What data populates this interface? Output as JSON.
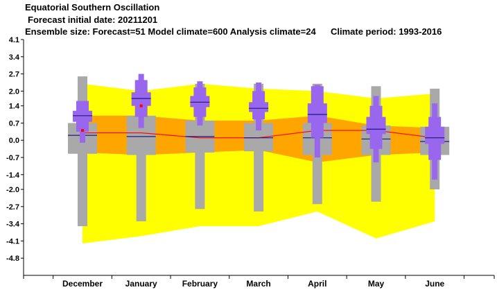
{
  "header": {
    "title": "Equatorial Southern Oscillation",
    "subtitle": "Forecast initial date: 20211201",
    "ensemble": "Ensemble size: Forecast=51 Model climate=600 Analysis climate=24",
    "climate_period": "Climate period: 1993-2016"
  },
  "colors": {
    "climate_outer": "#ffff00",
    "climate_inner": "#ffa500",
    "climate_box": "#a9a9a9",
    "forecast_box": "#9966ee",
    "median_line": "#1a1a80",
    "clim_median_line": "#ff0000",
    "analysis_marker": "#ff0000"
  },
  "chart_data": {
    "type": "box",
    "title": "Equatorial Southern Oscillation",
    "categories": [
      "December",
      "January",
      "February",
      "March",
      "April",
      "May",
      "June"
    ],
    "ylim": [
      -5.5,
      4.1
    ],
    "yticks": [
      "4.1",
      "3.4",
      "2.7",
      "2.0",
      "1.4",
      "0.7",
      "0.0",
      "-0.7",
      "-1.4",
      "-2.0",
      "-2.7",
      "-3.4",
      "-4.1",
      "-4.8"
    ],
    "ytick_values": [
      4.1,
      3.4,
      2.7,
      2.0,
      1.4,
      0.7,
      0.0,
      -0.7,
      -1.4,
      -2.0,
      -2.7,
      -3.4,
      -4.1,
      -4.8
    ],
    "climate_band_outer": {
      "upper": [
        2.3,
        2.0,
        2.3,
        2.1,
        2.0,
        1.7,
        1.9
      ],
      "lower": [
        -4.2,
        -3.9,
        -3.5,
        -3.5,
        -2.9,
        -4.0,
        -3.3
      ]
    },
    "climate_band_inner": {
      "upper": [
        1.0,
        1.0,
        0.8,
        0.8,
        1.0,
        0.6,
        0.5
      ],
      "lower": [
        -0.5,
        -0.6,
        -0.5,
        -0.4,
        -0.9,
        -0.6,
        -0.5
      ]
    },
    "climate_median": [
      0.3,
      0.3,
      0.1,
      0.1,
      0.4,
      0.4,
      0.1
    ],
    "climate_boxes": [
      {
        "min": -3.5,
        "p10": -0.6,
        "p25": -0.55,
        "median": 0.2,
        "p75": 0.7,
        "p90": 1.0,
        "max": 2.6
      },
      {
        "min": -3.3,
        "p10": -0.6,
        "p25": -0.6,
        "median": 0.15,
        "p75": 1.0,
        "p90": 1.0,
        "max": 2.0
      },
      {
        "min": -2.8,
        "p10": -0.5,
        "p25": -0.5,
        "median": 0.15,
        "p75": 0.8,
        "p90": 0.85,
        "max": 2.3
      },
      {
        "min": -2.9,
        "p10": -0.45,
        "p25": -0.45,
        "median": 0.1,
        "p75": 0.7,
        "p90": 0.75,
        "max": 2.3
      },
      {
        "min": -2.6,
        "p10": -0.6,
        "p25": -0.6,
        "median": 0.1,
        "p75": 0.7,
        "p90": 0.7,
        "max": 2.3
      },
      {
        "min": -2.5,
        "p10": -0.6,
        "p25": -0.6,
        "median": 0.05,
        "p75": 0.6,
        "p90": 0.6,
        "max": 2.2
      },
      {
        "min": -2.0,
        "p10": -0.6,
        "p25": -0.6,
        "median": -0.05,
        "p75": 0.55,
        "p90": 0.55,
        "max": 2.1
      }
    ],
    "forecast_boxes": [
      {
        "min": -0.1,
        "p10": 0.35,
        "p25": 0.75,
        "median": 1.0,
        "p75": 1.2,
        "p90": 1.6,
        "max": 1.6
      },
      {
        "min": 0.5,
        "p10": 0.95,
        "p25": 1.4,
        "median": 1.7,
        "p75": 1.95,
        "p90": 2.45,
        "max": 2.7
      },
      {
        "min": 0.6,
        "p10": 0.95,
        "p25": 1.35,
        "median": 1.55,
        "p75": 1.8,
        "p90": 2.15,
        "max": 2.4
      },
      {
        "min": 0.4,
        "p10": 0.85,
        "p25": 1.15,
        "median": 1.3,
        "p75": 1.55,
        "p90": 2.0,
        "max": 2.35
      },
      {
        "min": -0.7,
        "p10": 0.1,
        "p25": 0.7,
        "median": 1.05,
        "p75": 1.5,
        "p90": 2.2,
        "max": 2.25
      },
      {
        "min": -0.9,
        "p10": -0.35,
        "p25": 0.25,
        "median": 0.45,
        "p75": 0.95,
        "p90": 1.4,
        "max": 1.8
      },
      {
        "min": -1.6,
        "p10": -0.8,
        "p25": -0.15,
        "median": 0.1,
        "p75": 0.55,
        "p90": 0.95,
        "max": 1.5
      }
    ],
    "analysis": [
      0.4,
      1.4,
      null,
      null,
      null,
      null,
      null
    ]
  }
}
